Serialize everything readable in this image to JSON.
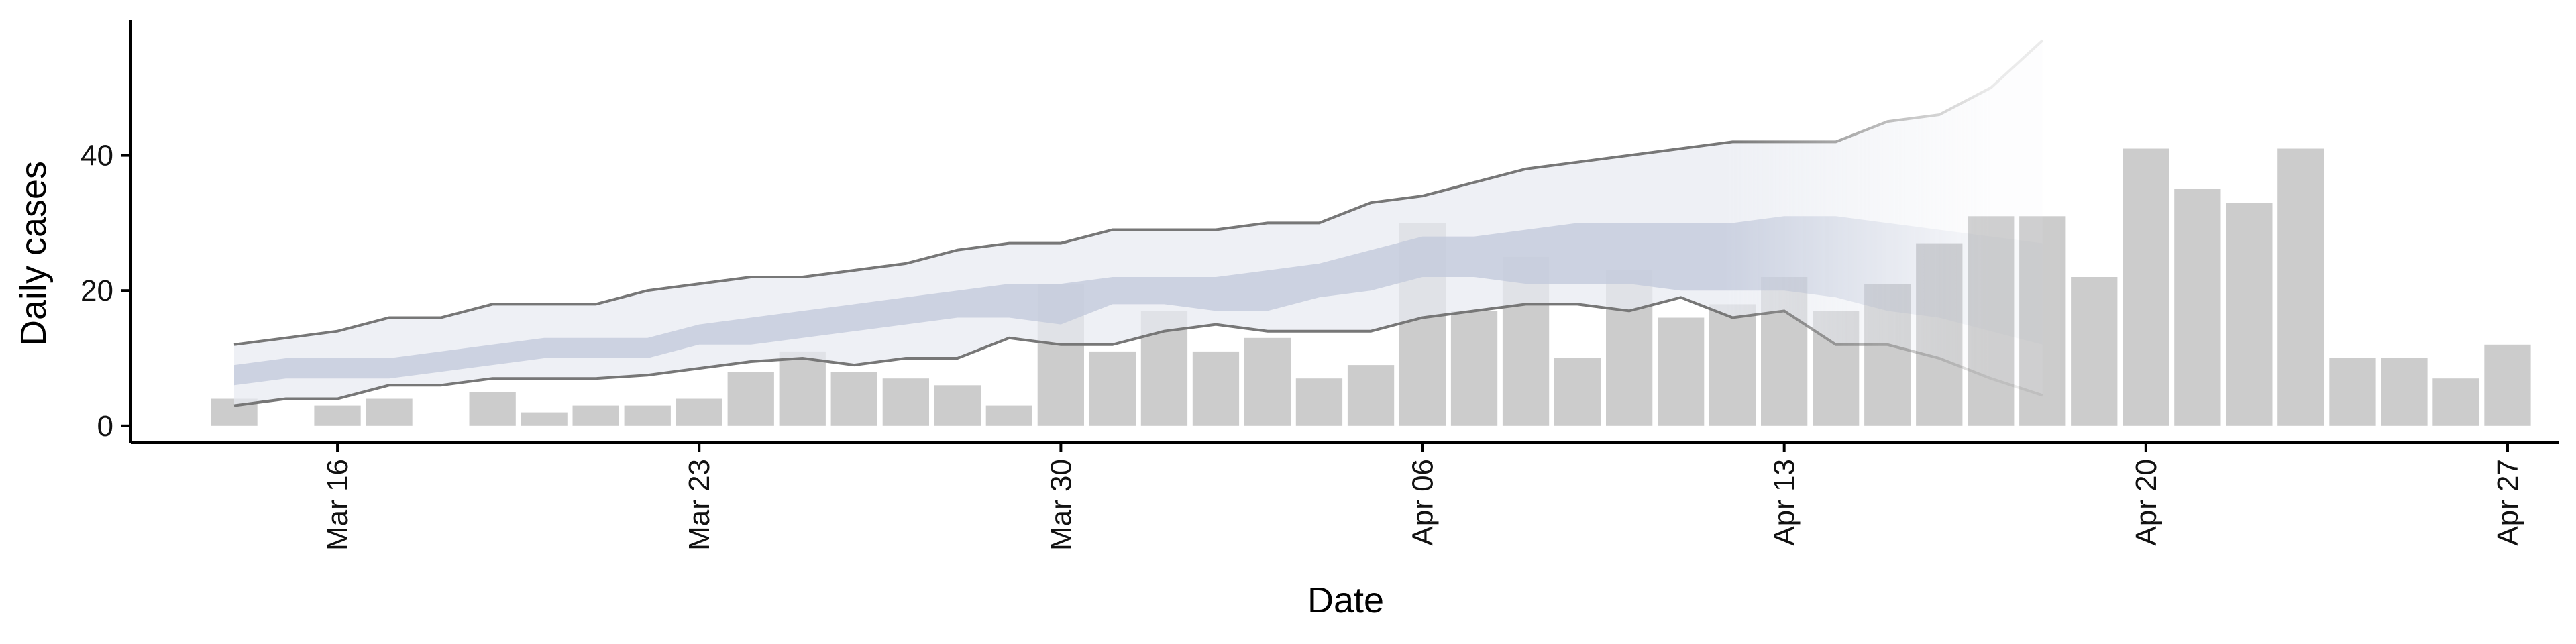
{
  "chart_data": {
    "type": "bar",
    "xlabel": "Date",
    "ylabel": "Daily cases",
    "x_tick_labels": [
      "Mar 16",
      "Mar 23",
      "Mar 30",
      "Apr 06",
      "Apr 13",
      "Apr 20",
      "Apr 27"
    ],
    "x_tick_dates": [
      "2020-03-16",
      "2020-03-23",
      "2020-03-30",
      "2020-04-06",
      "2020-04-13",
      "2020-04-20",
      "2020-04-27"
    ],
    "xlim": [
      "2020-03-12",
      "2020-04-28"
    ],
    "y_ticks": [
      0,
      20,
      40
    ],
    "ylim": [
      -2.5,
      60
    ],
    "grid": false,
    "legend": "none",
    "colors": {
      "bars": "#cccccc",
      "outer_band": "#e8eaf1",
      "inner_band": "#c4cadc",
      "band_line": "#777777",
      "axis": "#000000"
    },
    "bars": {
      "dates": [
        "2020-03-14",
        "2020-03-16",
        "2020-03-17",
        "2020-03-19",
        "2020-03-20",
        "2020-03-21",
        "2020-03-22",
        "2020-03-23",
        "2020-03-24",
        "2020-03-25",
        "2020-03-26",
        "2020-03-27",
        "2020-03-28",
        "2020-03-29",
        "2020-03-30",
        "2020-03-31",
        "2020-04-01",
        "2020-04-02",
        "2020-04-03",
        "2020-04-04",
        "2020-04-05",
        "2020-04-06",
        "2020-04-07",
        "2020-04-08",
        "2020-04-09",
        "2020-04-10",
        "2020-04-11",
        "2020-04-12",
        "2020-04-13",
        "2020-04-14",
        "2020-04-15",
        "2020-04-16",
        "2020-04-17",
        "2020-04-18",
        "2020-04-19",
        "2020-04-20",
        "2020-04-21",
        "2020-04-22",
        "2020-04-23",
        "2020-04-24",
        "2020-04-25",
        "2020-04-26",
        "2020-04-27"
      ],
      "values": [
        4,
        3,
        4,
        5,
        2,
        3,
        3,
        4,
        8,
        11,
        8,
        7,
        6,
        3,
        21,
        11,
        17,
        11,
        13,
        7,
        9,
        30,
        17,
        25,
        10,
        23,
        16,
        18,
        22,
        17,
        21,
        27,
        31,
        31,
        22,
        41,
        35,
        33,
        41,
        10,
        10,
        7,
        12
      ]
    },
    "nowcast": {
      "dates": [
        "2020-03-14",
        "2020-03-15",
        "2020-03-16",
        "2020-03-17",
        "2020-03-18",
        "2020-03-19",
        "2020-03-20",
        "2020-03-21",
        "2020-03-22",
        "2020-03-23",
        "2020-03-24",
        "2020-03-25",
        "2020-03-26",
        "2020-03-27",
        "2020-03-28",
        "2020-03-29",
        "2020-03-30",
        "2020-03-31",
        "2020-04-01",
        "2020-04-02",
        "2020-04-03",
        "2020-04-04",
        "2020-04-05",
        "2020-04-06",
        "2020-04-07",
        "2020-04-08",
        "2020-04-09",
        "2020-04-10",
        "2020-04-11",
        "2020-04-12",
        "2020-04-13",
        "2020-04-14",
        "2020-04-15",
        "2020-04-16",
        "2020-04-17",
        "2020-04-18"
      ],
      "upper90": [
        12,
        13,
        14,
        16,
        16,
        18,
        18,
        18,
        20,
        21,
        22,
        22,
        23,
        24,
        26,
        27,
        27,
        29,
        29,
        29,
        30,
        30,
        33,
        34,
        36,
        38,
        39,
        40,
        41,
        42,
        42,
        42,
        45,
        46,
        50,
        57
      ],
      "lower90": [
        3,
        4,
        4,
        6,
        6,
        7,
        7,
        7,
        7.5,
        8.5,
        9.5,
        10,
        9,
        10,
        10,
        13,
        12,
        12,
        14,
        15,
        14,
        14,
        14,
        16,
        17,
        18,
        18,
        17,
        19,
        16,
        17,
        12,
        12,
        10,
        7,
        4.5
      ],
      "upper50": [
        9,
        10,
        10,
        10,
        11,
        12,
        13,
        13,
        13,
        15,
        16,
        17,
        18,
        19,
        20,
        21,
        21,
        22,
        22,
        22,
        23,
        24,
        26,
        28,
        28,
        29,
        30,
        30,
        30,
        30,
        31,
        31,
        30,
        29,
        28,
        27
      ],
      "lower50": [
        6,
        7,
        7,
        7,
        8,
        9,
        10,
        10,
        10,
        12,
        12,
        13,
        14,
        15,
        16,
        16,
        15,
        18,
        18,
        17,
        17,
        19,
        20,
        22,
        22,
        21,
        21,
        21,
        20,
        20,
        20,
        19,
        17,
        16,
        14,
        12
      ]
    }
  }
}
